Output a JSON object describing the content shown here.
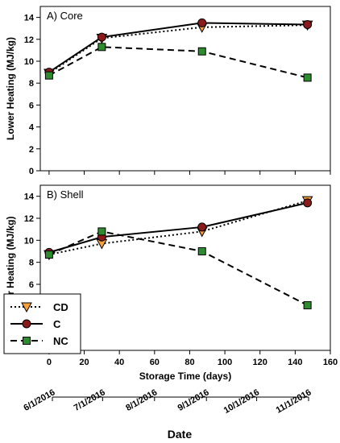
{
  "chart_data": [
    {
      "type": "line",
      "panel_label": "A) Core",
      "ylabel": "Lower Heating (MJ/kg)",
      "ylim": [
        0,
        15
      ],
      "yticks": [
        0,
        2,
        4,
        6,
        8,
        10,
        12,
        14
      ],
      "xlim": [
        -5,
        160
      ],
      "series": [
        {
          "name": "CD",
          "x": [
            0,
            30,
            87,
            147
          ],
          "values": [
            8.9,
            12.1,
            13.1,
            13.3
          ],
          "line_style": "dotted",
          "marker": "triangle-down",
          "color": "#f5a03a"
        },
        {
          "name": "C",
          "x": [
            0,
            30,
            87,
            147
          ],
          "values": [
            9.0,
            12.2,
            13.5,
            13.35
          ],
          "line_style": "solid",
          "marker": "circle",
          "color": "#8b1a1a"
        },
        {
          "name": "NC",
          "x": [
            0,
            30,
            87,
            147
          ],
          "values": [
            8.7,
            11.3,
            10.9,
            8.5
          ],
          "line_style": "dashed",
          "marker": "square",
          "color": "#2e8b2e"
        }
      ]
    },
    {
      "type": "line",
      "panel_label": "B) Shell",
      "ylabel": "Lower Heating (MJ/kg)",
      "xlabel": "Storage Time (days)",
      "ylim": [
        0,
        15
      ],
      "yticks": [
        0,
        2,
        4,
        6,
        8,
        10,
        12,
        14
      ],
      "xlim": [
        -5,
        160
      ],
      "xticks": [
        0,
        20,
        40,
        60,
        80,
        100,
        120,
        140,
        160
      ],
      "series": [
        {
          "name": "CD",
          "x": [
            0,
            30,
            87,
            147
          ],
          "values": [
            8.7,
            9.7,
            10.8,
            13.6
          ],
          "line_style": "dotted",
          "marker": "triangle-down",
          "color": "#f5a03a"
        },
        {
          "name": "C",
          "x": [
            0,
            30,
            87,
            147
          ],
          "values": [
            8.9,
            10.3,
            11.2,
            13.4
          ],
          "line_style": "solid",
          "marker": "circle",
          "color": "#8b1a1a"
        },
        {
          "name": "NC",
          "x": [
            0,
            30,
            87,
            147
          ],
          "values": [
            8.7,
            10.8,
            9.0,
            4.1
          ],
          "line_style": "dashed",
          "marker": "square",
          "color": "#2e8b2e"
        }
      ],
      "legend": {
        "placement": "bottom-left",
        "entries": [
          "CD",
          "C",
          "NC"
        ]
      }
    }
  ],
  "date_axis": {
    "title": "Date",
    "ticks": [
      {
        "label": "6/1/2016",
        "day": 0
      },
      {
        "label": "7/1/2016",
        "day": 30
      },
      {
        "label": "8/1/2016",
        "day": 61
      },
      {
        "label": "9/1/2016",
        "day": 92
      },
      {
        "label": "10/1/2016",
        "day": 122
      },
      {
        "label": "11/1/2016",
        "day": 153
      }
    ]
  }
}
